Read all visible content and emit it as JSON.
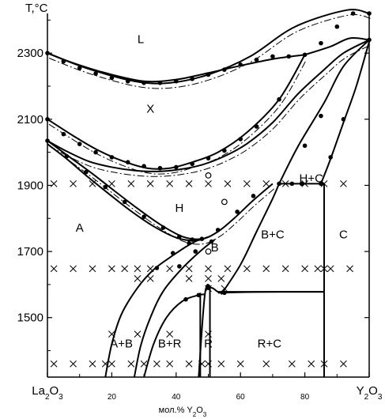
{
  "chart_data": {
    "type": "scatter",
    "title": "",
    "xlabel": "мол.% Y2O3",
    "ylabel": "T,°C",
    "xlim": [
      0,
      100
    ],
    "ylim": [
      1320,
      2420
    ],
    "x_tick_labels": [
      {
        "value": 0,
        "label": "La2O3"
      },
      {
        "value": 20,
        "label": "20"
      },
      {
        "value": 40,
        "label": "40"
      },
      {
        "value": 60,
        "label": "60"
      },
      {
        "value": 80,
        "label": "80"
      },
      {
        "value": 100,
        "label": "Y2O3"
      }
    ],
    "y_ticks": [
      1500,
      1700,
      1900,
      2100,
      2300
    ],
    "grid": false,
    "phase_labels": [
      {
        "text": "L",
        "x": 29,
        "y": 2330
      },
      {
        "text": "X",
        "x": 32,
        "y": 2120
      },
      {
        "text": "H",
        "x": 41,
        "y": 1820
      },
      {
        "text": "A",
        "x": 10,
        "y": 1760
      },
      {
        "text": "B",
        "x": 52,
        "y": 1700
      },
      {
        "text": "B+C",
        "x": 70,
        "y": 1740
      },
      {
        "text": "H+C",
        "x": 82,
        "y": 1910
      },
      {
        "text": "C",
        "x": 92,
        "y": 1740
      },
      {
        "text": "A+B",
        "x": 23,
        "y": 1410
      },
      {
        "text": "B+R",
        "x": 38,
        "y": 1410
      },
      {
        "text": "R",
        "x": 50,
        "y": 1410
      },
      {
        "text": "R+C",
        "x": 69,
        "y": 1410
      }
    ],
    "curves": [
      {
        "name": "liquidus",
        "x": [
          0,
          12,
          27,
          38,
          50,
          63,
          77,
          93,
          100
        ],
        "y": [
          2300,
          2255,
          2215,
          2210,
          2235,
          2290,
          2380,
          2430,
          2420
        ]
      },
      {
        "name": "solidus",
        "x": [
          0,
          8,
          18,
          30,
          40,
          50,
          60,
          70,
          80
        ],
        "y": [
          2300,
          2270,
          2240,
          2215,
          2220,
          2240,
          2262,
          2282,
          2295
        ]
      },
      {
        "name": "L-X boundary",
        "x": [
          80,
          88,
          94,
          100
        ],
        "y": [
          2295,
          2320,
          2345,
          2340
        ]
      },
      {
        "name": "X upper",
        "x": [
          0,
          8,
          15,
          23,
          31,
          38,
          45,
          53,
          62,
          72,
          80
        ],
        "y": [
          2100,
          2050,
          2010,
          1975,
          1952,
          1952,
          1970,
          2000,
          2060,
          2160,
          2295
        ]
      },
      {
        "name": "X lower",
        "x": [
          0,
          6,
          13,
          20,
          27,
          34,
          41,
          48,
          55,
          62,
          70,
          78,
          86,
          92,
          100
        ],
        "y": [
          2035,
          2003,
          1972,
          1955,
          1945,
          1942,
          1948,
          1962,
          1988,
          2026,
          2090,
          2178,
          2250,
          2300,
          2340
        ]
      },
      {
        "name": "H upper",
        "x": [
          0,
          7,
          14,
          21,
          28,
          35,
          42,
          48,
          53,
          58,
          64,
          70
        ],
        "y": [
          2035,
          1985,
          1935,
          1882,
          1830,
          1782,
          1745,
          1738,
          1760,
          1800,
          1855,
          1905
        ]
      },
      {
        "name": "H lower",
        "x": [
          0,
          6,
          12,
          19,
          26,
          33,
          40,
          46,
          50
        ],
        "y": [
          2025,
          1980,
          1930,
          1875,
          1822,
          1776,
          1742,
          1733,
          1744
        ]
      },
      {
        "name": "H+C upper",
        "x": [
          72,
          78,
          86,
          92,
          100
        ],
        "y": [
          1905,
          2020,
          2150,
          2260,
          2340
        ]
      },
      {
        "name": "H+C right",
        "x": [
          85,
          88,
          92,
          96,
          100
        ],
        "y": [
          1905,
          1980,
          2090,
          2200,
          2335
        ]
      },
      {
        "name": "A/A+B",
        "x": [
          18,
          20,
          23,
          28,
          33,
          39,
          44,
          47
        ],
        "y": [
          1320,
          1420,
          1510,
          1590,
          1645,
          1688,
          1720,
          1735
        ]
      },
      {
        "name": "A+B/B",
        "x": [
          27,
          29,
          32,
          36,
          42,
          48,
          52
        ],
        "y": [
          1320,
          1415,
          1500,
          1580,
          1650,
          1705,
          1736
        ]
      },
      {
        "name": "B/B+R",
        "x": [
          30,
          33,
          37,
          42,
          47,
          49
        ],
        "y": [
          1320,
          1420,
          1500,
          1550,
          1568,
          1570
        ]
      },
      {
        "name": "B/B+C",
        "x": [
          54,
          60,
          65,
          70,
          72
        ],
        "y": [
          1570,
          1660,
          1760,
          1860,
          1905
        ]
      },
      {
        "name": "R dome",
        "x": [
          47,
          49,
          51,
          53,
          55
        ],
        "y": [
          1320,
          1575,
          1590,
          1578,
          1575
        ]
      },
      {
        "name": "R+C top",
        "x": [
          53,
          62,
          72,
          86
        ],
        "y": [
          1575,
          1577,
          1578,
          1578
        ]
      }
    ],
    "vertical_lines": [
      {
        "x": 47.5,
        "y_min": 1320,
        "y_max": 1575
      },
      {
        "x": 50.5,
        "y_min": 1320,
        "y_max": 1590
      },
      {
        "x": 86,
        "y_min": 1320,
        "y_max": 1578
      },
      {
        "x": 86,
        "y_min": 1578,
        "y_max": 1905
      }
    ],
    "horizontal_lines": [
      {
        "x_min": 72,
        "x_max": 86,
        "y": 1905
      },
      {
        "x_min": 53,
        "x_max": 86,
        "y": 1578
      }
    ],
    "points": [
      [
        0,
        2300
      ],
      [
        5,
        2275
      ],
      [
        10,
        2255
      ],
      [
        15,
        2238
      ],
      [
        20,
        2225
      ],
      [
        25,
        2215
      ],
      [
        30,
        2210
      ],
      [
        35,
        2210
      ],
      [
        40,
        2215
      ],
      [
        45,
        2222
      ],
      [
        50,
        2235
      ],
      [
        55,
        2250
      ],
      [
        60,
        2265
      ],
      [
        65,
        2280
      ],
      [
        70,
        2290
      ],
      [
        75,
        2290
      ],
      [
        80,
        2295
      ],
      [
        85,
        2330
      ],
      [
        90,
        2380
      ],
      [
        95,
        2420
      ],
      [
        100,
        2420
      ],
      [
        0,
        2100
      ],
      [
        5,
        2055
      ],
      [
        10,
        2025
      ],
      [
        15,
        2000
      ],
      [
        20,
        1985
      ],
      [
        25,
        1970
      ],
      [
        30,
        1958
      ],
      [
        35,
        1952
      ],
      [
        40,
        1955
      ],
      [
        45,
        1965
      ],
      [
        50,
        1982
      ],
      [
        55,
        2005
      ],
      [
        60,
        2040
      ],
      [
        65,
        2078
      ],
      [
        72,
        2160
      ],
      [
        0,
        2035
      ],
      [
        6,
        1988
      ],
      [
        12,
        1940
      ],
      [
        18,
        1895
      ],
      [
        24,
        1850
      ],
      [
        30,
        1805
      ],
      [
        36,
        1772
      ],
      [
        41,
        1745
      ],
      [
        45,
        1736
      ],
      [
        48,
        1738
      ],
      [
        53,
        1765
      ],
      [
        59,
        1820
      ],
      [
        64,
        1868
      ],
      [
        72,
        1905
      ],
      [
        80,
        2020
      ],
      [
        85,
        2110
      ],
      [
        88,
        1985
      ],
      [
        92,
        2100
      ],
      [
        100,
        2340
      ],
      [
        34,
        1650
      ],
      [
        39,
        1695
      ],
      [
        44,
        1725
      ],
      [
        41,
        1655
      ],
      [
        46,
        1700
      ],
      [
        51,
        1730
      ],
      [
        43,
        1555
      ],
      [
        47,
        1568
      ],
      [
        50,
        1590
      ],
      [
        55,
        1575
      ],
      [
        76,
        1905
      ],
      [
        79,
        1905
      ],
      [
        85,
        1905
      ]
    ],
    "open_points": [
      [
        50,
        1930
      ],
      [
        50,
        1700
      ],
      [
        55,
        1850
      ]
    ],
    "x_marks": [
      [
        2,
        1905
      ],
      [
        8,
        1905
      ],
      [
        14,
        1905
      ],
      [
        20,
        1905
      ],
      [
        26,
        1905
      ],
      [
        32,
        1905
      ],
      [
        38,
        1905
      ],
      [
        44,
        1905
      ],
      [
        50,
        1905
      ],
      [
        56,
        1905
      ],
      [
        62,
        1905
      ],
      [
        68,
        1905
      ],
      [
        74,
        1905
      ],
      [
        80,
        1905
      ],
      [
        86,
        1905
      ],
      [
        92,
        1905
      ],
      [
        2,
        1648
      ],
      [
        8,
        1648
      ],
      [
        14,
        1648
      ],
      [
        20,
        1648
      ],
      [
        24,
        1648
      ],
      [
        28,
        1648
      ],
      [
        32,
        1648
      ],
      [
        38,
        1648
      ],
      [
        44,
        1648
      ],
      [
        50,
        1648
      ],
      [
        56,
        1648
      ],
      [
        62,
        1648
      ],
      [
        68,
        1648
      ],
      [
        74,
        1648
      ],
      [
        80,
        1648
      ],
      [
        84,
        1648
      ],
      [
        86,
        1648
      ],
      [
        88,
        1648
      ],
      [
        94,
        1648
      ],
      [
        28,
        1618
      ],
      [
        32,
        1618
      ],
      [
        44,
        1618
      ],
      [
        50,
        1618
      ],
      [
        54,
        1618
      ],
      [
        50,
        1588
      ],
      [
        55,
        1588
      ],
      [
        20,
        1450
      ],
      [
        28,
        1450
      ],
      [
        38,
        1450
      ],
      [
        50,
        1450
      ],
      [
        2,
        1360
      ],
      [
        8,
        1360
      ],
      [
        14,
        1360
      ],
      [
        18,
        1360
      ],
      [
        20,
        1360
      ],
      [
        26,
        1360
      ],
      [
        30,
        1360
      ],
      [
        34,
        1360
      ],
      [
        38,
        1360
      ],
      [
        44,
        1360
      ],
      [
        48,
        1360
      ],
      [
        50,
        1360
      ],
      [
        54,
        1360
      ],
      [
        60,
        1360
      ],
      [
        68,
        1360
      ],
      [
        76,
        1360
      ],
      [
        82,
        1360
      ],
      [
        86,
        1360
      ],
      [
        92,
        1360
      ]
    ]
  }
}
